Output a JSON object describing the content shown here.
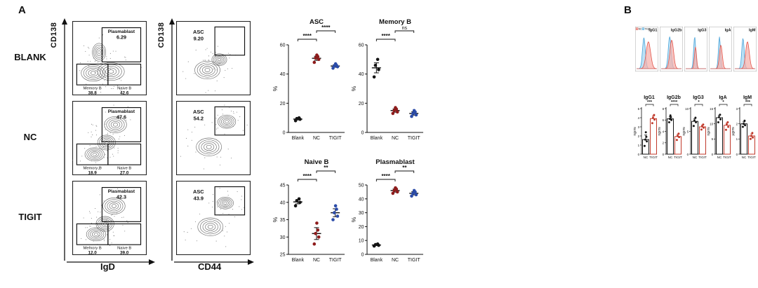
{
  "figure": {
    "panelA": {
      "label": "A"
    },
    "panelB": {
      "label": "B",
      "legend": [
        {
          "label": "NC"
        },
        {
          "label": "TIGIT"
        }
      ]
    }
  },
  "colors": {
    "blank": "#141414",
    "nc": "#8e1b1b",
    "tigit": "#2b4ba8",
    "bar_nc_outline": "#141414",
    "bar_tigit_outline": "#c0392b",
    "hist_nc_fill": "#f5b2ac",
    "hist_nc_stroke": "#e2584e",
    "hist_tigit_fill": "#a5d8f3",
    "hist_tigit_stroke": "#4aa3d8",
    "contour": "#4f4f4f"
  },
  "chart_data": {
    "flow_plots": {
      "type": "flow-contour",
      "y_axis": "CD138",
      "x_axes": [
        "IgD",
        "CD44"
      ],
      "gate_names": {
        "plasmablast": "Plasmablast",
        "memory_b": "Memory B",
        "naive_b": "Naive B",
        "asc": "ASC"
      },
      "rows": [
        {
          "label": "BLANK",
          "igd_gates": {
            "plasmablast": "6.29",
            "memory_b": "38.8",
            "naive_b": "42.6"
          },
          "cd44_gates": {
            "asc": "9.20"
          }
        },
        {
          "label": "NC",
          "igd_gates": {
            "plasmablast": "47.6",
            "memory_b": "18.9",
            "naive_b": "27.0"
          },
          "cd44_gates": {
            "asc": "54.2"
          }
        },
        {
          "label": "TIGIT",
          "igd_gates": {
            "plasmablast": "42.3",
            "memory_b": "12.0",
            "naive_b": "39.0"
          },
          "cd44_gates": {
            "asc": "43.9"
          }
        }
      ]
    },
    "scatter_plots": [
      {
        "type": "scatter",
        "title": "ASC",
        "ylabel": "%",
        "categories": [
          "Blank",
          "NC",
          "TIGIT"
        ],
        "ylim": [
          0,
          60
        ],
        "yticks": [
          0,
          20,
          40,
          60
        ],
        "series": [
          {
            "name": "Blank",
            "values": [
              8,
              9,
              9.5,
              10
            ]
          },
          {
            "name": "NC",
            "values": [
              48,
              50,
              51,
              52,
              53
            ]
          },
          {
            "name": "TIGIT",
            "values": [
              44,
              45,
              45.5,
              46,
              47
            ]
          }
        ],
        "significance": [
          {
            "between": [
              "Blank",
              "NC"
            ],
            "label": "****"
          },
          {
            "between": [
              "NC",
              "TIGIT"
            ],
            "label": "****"
          }
        ]
      },
      {
        "type": "scatter",
        "title": "Memory B",
        "ylabel": "%",
        "categories": [
          "Blank",
          "NC",
          "TIGIT"
        ],
        "ylim": [
          0,
          60
        ],
        "yticks": [
          0,
          20,
          40,
          60
        ],
        "series": [
          {
            "name": "Blank",
            "values": [
              38,
              43,
              46,
              50
            ]
          },
          {
            "name": "NC",
            "values": [
              13,
              14,
              15,
              16,
              17
            ]
          },
          {
            "name": "TIGIT",
            "values": [
              11,
              12,
              13,
              14,
              15
            ]
          }
        ],
        "significance": [
          {
            "between": [
              "Blank",
              "NC"
            ],
            "label": "****"
          },
          {
            "between": [
              "NC",
              "TIGIT"
            ],
            "label": "ns"
          }
        ]
      },
      {
        "type": "scatter",
        "title": "Naive B",
        "ylabel": "%",
        "categories": [
          "Blank",
          "NC",
          "TIGIT"
        ],
        "ylim": [
          25,
          45
        ],
        "yticks": [
          25,
          30,
          35,
          40,
          45
        ],
        "series": [
          {
            "name": "Blank",
            "values": [
              39,
              40,
              40.5,
              41
            ]
          },
          {
            "name": "NC",
            "values": [
              28,
              30,
              31,
              32,
              34
            ]
          },
          {
            "name": "TIGIT",
            "values": [
              35,
              36,
              37,
              38,
              39
            ]
          }
        ],
        "significance": [
          {
            "between": [
              "Blank",
              "NC"
            ],
            "label": "****"
          },
          {
            "between": [
              "NC",
              "TIGIT"
            ],
            "label": "**"
          }
        ]
      },
      {
        "type": "scatter",
        "title": "Plasmablast",
        "ylabel": "%",
        "categories": [
          "Blank",
          "NC",
          "TIGIT"
        ],
        "ylim": [
          0,
          50
        ],
        "yticks": [
          0,
          10,
          20,
          30,
          40,
          50
        ],
        "series": [
          {
            "name": "Blank",
            "values": [
              6,
              6.5,
              7,
              7.5
            ]
          },
          {
            "name": "NC",
            "values": [
              44,
              45,
              46,
              47,
              48
            ]
          },
          {
            "name": "TIGIT",
            "values": [
              42,
              43,
              44,
              45,
              46
            ]
          }
        ],
        "significance": [
          {
            "between": [
              "Blank",
              "NC"
            ],
            "label": "****"
          },
          {
            "between": [
              "NC",
              "TIGIT"
            ],
            "label": "**"
          }
        ]
      }
    ],
    "histograms": [
      {
        "type": "area",
        "title": "IgG1",
        "nc": {
          "peak": 0.58,
          "width": 0.11,
          "height": 0.8
        },
        "tigit": {
          "peak": 0.36,
          "width": 0.07,
          "height": 0.92
        }
      },
      {
        "type": "area",
        "title": "IgG2b",
        "nc": {
          "peak": 0.52,
          "width": 0.09,
          "height": 0.85
        },
        "tigit": {
          "peak": 0.42,
          "width": 0.07,
          "height": 0.95
        }
      },
      {
        "type": "area",
        "title": "IgG3",
        "nc": {
          "peak": 0.48,
          "width": 0.05,
          "height": 0.65
        },
        "tigit": {
          "peak": 0.44,
          "width": 0.05,
          "height": 0.95
        }
      },
      {
        "type": "area",
        "title": "IgA",
        "nc": {
          "peak": 0.52,
          "width": 0.07,
          "height": 0.7
        },
        "tigit": {
          "peak": 0.45,
          "width": 0.05,
          "height": 0.95
        }
      },
      {
        "type": "area",
        "title": "IgM",
        "nc": {
          "peak": 0.62,
          "width": 0.09,
          "height": 0.8
        },
        "tigit": {
          "peak": 0.4,
          "width": 0.06,
          "height": 0.9
        }
      }
    ],
    "bar_charts": [
      {
        "type": "bar",
        "title": "IgG1",
        "ylabel": "ng/ml",
        "categories": [
          "NC",
          "TIGIT"
        ],
        "ylim": [
          0,
          5
        ],
        "yticks": [
          0,
          1,
          2,
          3,
          4,
          5
        ],
        "means": [
          1.6,
          3.9
        ],
        "points": [
          [
            0.9,
            1.4,
            1.6,
            1.9,
            2.4
          ],
          [
            3.4,
            3.8,
            4.0,
            4.3
          ]
        ],
        "significance": "***"
      },
      {
        "type": "bar",
        "title": "IgG2b",
        "ylabel": "ng/ml",
        "categories": [
          "NC",
          "TIGIT"
        ],
        "ylim": [
          0,
          8
        ],
        "yticks": [
          0,
          2,
          4,
          6,
          8
        ],
        "means": [
          6.2,
          3.1
        ],
        "points": [
          [
            5.6,
            6.0,
            6.2,
            6.5,
            6.8
          ],
          [
            2.5,
            3.0,
            3.2,
            3.6
          ]
        ],
        "significance": "****"
      },
      {
        "type": "bar",
        "title": "IgG3",
        "ylabel": "ng/ml",
        "categories": [
          "NC",
          "TIGIT"
        ],
        "ylim": [
          0,
          10
        ],
        "yticks": [
          0,
          5,
          10
        ],
        "means": [
          7.2,
          6.0
        ],
        "points": [
          [
            6.2,
            7.0,
            7.4,
            8.0
          ],
          [
            5.4,
            5.8,
            6.1,
            6.5
          ]
        ],
        "significance": "*"
      },
      {
        "type": "bar",
        "title": "IgA",
        "ylabel": "ng/ml",
        "categories": [
          "NC",
          "TIGIT"
        ],
        "ylim": [
          0,
          15
        ],
        "yticks": [
          0,
          5,
          10,
          15
        ],
        "means": [
          12.0,
          9.5
        ],
        "points": [
          [
            10.5,
            11.5,
            12.2,
            13.0
          ],
          [
            8.0,
            9.0,
            9.8,
            10.5
          ]
        ],
        "significance": "*"
      },
      {
        "type": "bar",
        "title": "IgM",
        "ylabel": "μg/ml",
        "categories": [
          "NC",
          "TIGIT"
        ],
        "ylim": [
          0,
          3
        ],
        "yticks": [
          0,
          1,
          2,
          3
        ],
        "means": [
          2.0,
          1.2
        ],
        "points": [
          [
            1.8,
            1.9,
            2.0,
            2.2
          ],
          [
            1.0,
            1.1,
            1.2,
            1.4
          ]
        ],
        "significance": "***"
      }
    ]
  }
}
